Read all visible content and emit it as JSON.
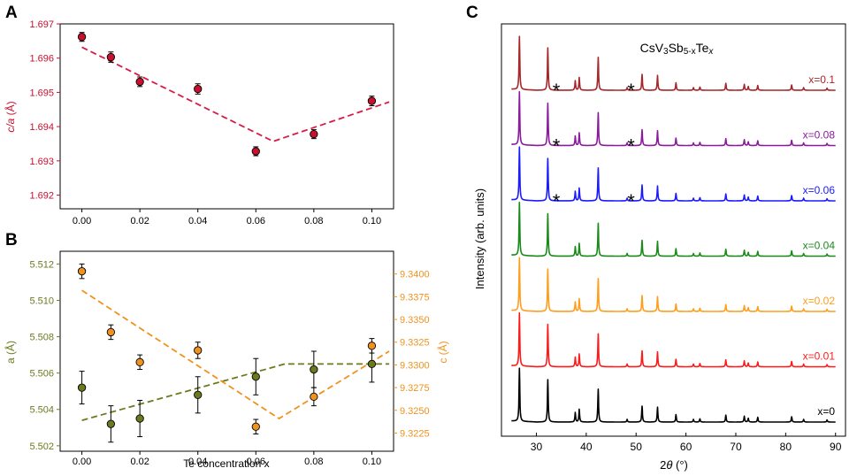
{
  "chart_data": [
    {
      "panel": "A",
      "type": "scatter",
      "xlabel": "",
      "ylabel": "c/a (Å)",
      "ylabel_parts": {
        "main": "c/a",
        "unit": " (Å)"
      },
      "xlim": [
        -0.0075,
        0.1075
      ],
      "ylim": [
        1.6916,
        1.697
      ],
      "x_ticks": [
        0.0,
        0.02,
        0.04,
        0.06,
        0.08,
        0.1
      ],
      "x_tick_labels": [
        "0.00",
        "0.02",
        "0.04",
        "0.06",
        "0.08",
        "0.10"
      ],
      "y_ticks": [
        1.692,
        1.693,
        1.694,
        1.695,
        1.696,
        1.697
      ],
      "y_tick_labels": [
        "1.692",
        "1.693",
        "1.694",
        "1.695",
        "1.696",
        "1.697"
      ],
      "series": [
        {
          "name": "c/a",
          "x": [
            0.0,
            0.01,
            0.02,
            0.04,
            0.06,
            0.08,
            0.1
          ],
          "y": [
            1.69662,
            1.69603,
            1.69531,
            1.6951,
            1.69328,
            1.69378,
            1.69475
          ],
          "err": [
            0.00013,
            0.00015,
            0.00014,
            0.00015,
            0.00013,
            0.00013,
            0.00014
          ],
          "color": "#c8102e"
        }
      ],
      "fit_lines": [
        {
          "x": [
            0.0,
            0.066,
            0.106
          ],
          "y": [
            1.69632,
            1.69357,
            1.69472
          ],
          "color": "#d81b46"
        }
      ]
    },
    {
      "panel": "B",
      "type": "scatter",
      "xlabel": "Te concentration x",
      "ylabel_left": "a (Å)",
      "ylabel_right": "c (Å)",
      "xlim": [
        -0.0075,
        0.1075
      ],
      "ylim_left": [
        5.5017,
        5.5127
      ],
      "ylim_right": [
        9.3205,
        9.3425
      ],
      "x_ticks": [
        0.0,
        0.02,
        0.04,
        0.06,
        0.08,
        0.1
      ],
      "x_tick_labels": [
        "0.00",
        "0.02",
        "0.04",
        "0.06",
        "0.08",
        "0.10"
      ],
      "y_ticks_left": [
        5.502,
        5.504,
        5.506,
        5.508,
        5.51,
        5.512
      ],
      "y_tick_labels_left": [
        "5.502",
        "5.504",
        "5.506",
        "5.508",
        "5.510",
        "5.512"
      ],
      "y_ticks_right": [
        9.3225,
        9.325,
        9.3275,
        9.33,
        9.3325,
        9.335,
        9.3375,
        9.34
      ],
      "y_tick_labels_right": [
        "9.3225",
        "9.3250",
        "9.3275",
        "9.3300",
        "9.3325",
        "9.3350",
        "9.3375",
        "9.3400"
      ],
      "series": [
        {
          "name": "a",
          "axis": "left",
          "x": [
            0.0,
            0.01,
            0.02,
            0.04,
            0.06,
            0.08,
            0.1
          ],
          "y": [
            5.5052,
            5.5032,
            5.5035,
            5.5048,
            5.5058,
            5.5062,
            5.5065
          ],
          "err": [
            0.0009,
            0.001,
            0.001,
            0.001,
            0.001,
            0.001,
            0.001
          ],
          "color": "#6b7a1e"
        },
        {
          "name": "c",
          "axis": "right",
          "x": [
            0.0,
            0.01,
            0.02,
            0.04,
            0.06,
            0.08,
            0.1
          ],
          "y": [
            9.3403,
            9.3336,
            9.3303,
            9.3316,
            9.3232,
            9.3265,
            9.3321
          ],
          "err": [
            0.0008,
            0.0008,
            0.0008,
            0.0009,
            0.0008,
            0.001,
            0.0008
          ],
          "color": "#f0921e"
        }
      ],
      "fit_lines": [
        {
          "axis": "left",
          "x": [
            0.0,
            0.07,
            0.106
          ],
          "y": [
            5.5034,
            5.5065,
            5.5065
          ],
          "color": "#6b7a1e"
        },
        {
          "axis": "right",
          "x": [
            0.0,
            0.068,
            0.106
          ],
          "y": [
            9.3382,
            9.3241,
            9.3315
          ],
          "color": "#f0921e"
        }
      ]
    },
    {
      "panel": "C",
      "type": "line",
      "title": "CsV₃Sb₅₋ₓTeₓ",
      "title_parts": {
        "main": "CsV",
        "s1": "3",
        "mid": "Sb",
        "s2": "5-x",
        "mid2": "Te",
        "s3": "x"
      },
      "xlabel": "2θ (°)",
      "xlabel_parts": {
        "main": "2",
        "theta": "θ",
        "unit": " (°)"
      },
      "ylabel": "Intensity (arb. units)",
      "xlim": [
        23,
        92
      ],
      "x_ticks": [
        30,
        40,
        50,
        60,
        70,
        80,
        90
      ],
      "x_tick_labels": [
        "30",
        "40",
        "50",
        "60",
        "70",
        "80",
        "90"
      ],
      "peaks": [
        {
          "pos": 26.6,
          "h": 1.0
        },
        {
          "pos": 32.3,
          "h": 0.8
        },
        {
          "pos": 37.8,
          "h": 0.18
        },
        {
          "pos": 38.6,
          "h": 0.24
        },
        {
          "pos": 42.4,
          "h": 0.62
        },
        {
          "pos": 48.2,
          "h": 0.05
        },
        {
          "pos": 51.2,
          "h": 0.3
        },
        {
          "pos": 54.3,
          "h": 0.28
        },
        {
          "pos": 58.0,
          "h": 0.14
        },
        {
          "pos": 61.5,
          "h": 0.05
        },
        {
          "pos": 62.8,
          "h": 0.06
        },
        {
          "pos": 68.0,
          "h": 0.13
        },
        {
          "pos": 71.7,
          "h": 0.11
        },
        {
          "pos": 72.5,
          "h": 0.07
        },
        {
          "pos": 74.4,
          "h": 0.09
        },
        {
          "pos": 81.2,
          "h": 0.1
        },
        {
          "pos": 83.6,
          "h": 0.05
        },
        {
          "pos": 88.3,
          "h": 0.04
        }
      ],
      "series": [
        {
          "name": "x=0",
          "label": "x=0",
          "color": "#000000",
          "offset": 0,
          "star": false
        },
        {
          "name": "x=0.01",
          "label": "x=0.01",
          "color": "#ff1a1a",
          "offset": 1,
          "star": false
        },
        {
          "name": "x=0.02",
          "label": "x=0.02",
          "color": "#ff9d1c",
          "offset": 2,
          "star": false
        },
        {
          "name": "x=0.04",
          "label": "x=0.04",
          "color": "#1a8a1a",
          "offset": 3,
          "star": false
        },
        {
          "name": "x=0.06",
          "label": "x=0.06",
          "color": "#1a1aff",
          "offset": 4,
          "star": true
        },
        {
          "name": "x=0.08",
          "label": "x=0.08",
          "color": "#8b1a9e",
          "offset": 5,
          "star": true
        },
        {
          "name": "x=0.1",
          "label": "x=0.1",
          "color": "#a6262a",
          "offset": 6,
          "star": true
        }
      ],
      "star_symbol": "*",
      "star_positions": [
        34.0,
        49.0
      ]
    }
  ],
  "panel_labels": {
    "a": "A",
    "b": "B",
    "c": "C"
  }
}
